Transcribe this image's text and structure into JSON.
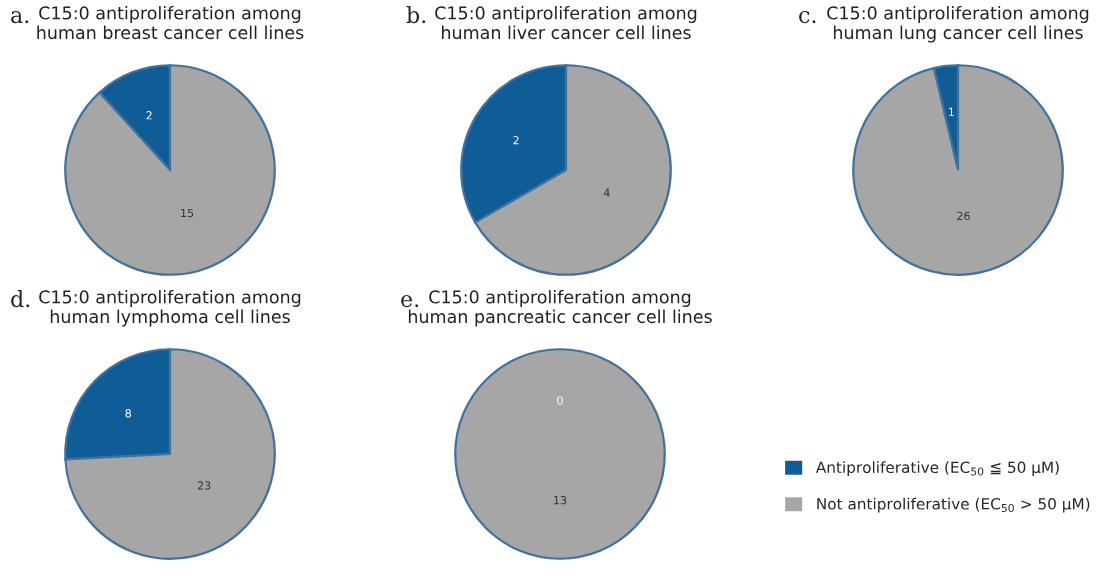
{
  "chart_data": [
    {
      "type": "pie",
      "title": "C15:0 antiproliferation among\nhuman breast cancer cell lines",
      "annotations": [
        "a."
      ],
      "categories": [
        null,
        null
      ],
      "values": [
        2,
        15
      ],
      "colors": [
        "#0f5c97",
        "#a6a6a6"
      ],
      "data_labels": true,
      "legend": false
    },
    {
      "type": "pie",
      "title": "C15:0 antiproliferation among\nhuman liver cancer cell lines",
      "annotations": [
        "b."
      ],
      "categories": [
        null,
        null
      ],
      "values": [
        2,
        4
      ],
      "colors": [
        "#0f5c97",
        "#a6a6a6"
      ],
      "data_labels": true,
      "legend": false
    },
    {
      "type": "pie",
      "title": "C15:0 antiproliferation among\nhuman lung cancer cell lines",
      "annotations": [
        "c."
      ],
      "categories": [
        null,
        null
      ],
      "values": [
        1,
        26
      ],
      "colors": [
        "#0f5c97",
        "#a6a6a6"
      ],
      "data_labels": true,
      "legend": false
    },
    {
      "type": "pie",
      "title": "C15:0 antiproliferation among\nhuman lymphoma cell lines",
      "annotations": [
        "d."
      ],
      "categories": [
        null,
        null
      ],
      "values": [
        8,
        23
      ],
      "colors": [
        "#0f5c97",
        "#a6a6a6"
      ],
      "data_labels": true,
      "legend": false
    },
    {
      "type": "pie",
      "title": "C15:0 antiproliferation among\nhuman pancreatic cancer cell lines",
      "annotations": [
        "e."
      ],
      "categories": [
        "Antiproliferative (EC$_{50}$ ≦ 50 μM)",
        "Not antiproliferative (EC$_{50}$ > 50 μM)"
      ],
      "values": [
        0,
        13
      ],
      "colors": [
        "#0f5c97",
        "#a6a6a6"
      ],
      "value_labels": [
        "0",
        "13"
      ],
      "legend": "right"
    }
  ]
}
